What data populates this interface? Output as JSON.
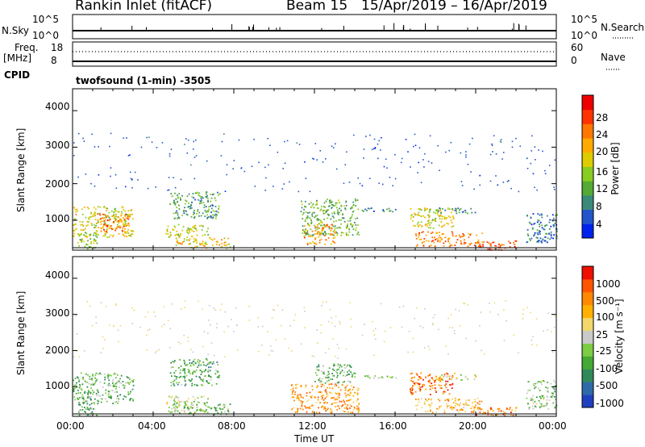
{
  "header": {
    "station": "Rankin Inlet (fitACF)",
    "beam": "Beam 15",
    "date_range": "15/Apr/2019 – 16/Apr/2019"
  },
  "top_panels": {
    "nsky_label": "N.Sky",
    "nsky_ticks": [
      "10^5",
      "10^0"
    ],
    "nsearch_label": "N.Search",
    "nsearch_ticks": [
      "10^5",
      "10^0"
    ],
    "freq_label": "Freq.",
    "freq_unit": "[MHz]",
    "freq_ticks": [
      "18",
      "8"
    ],
    "nave_label": "Nave",
    "nave_ticks": [
      "60",
      "0"
    ],
    "cpid_label": "CPID",
    "cpid_value": "twofsound (1-min) -3505"
  },
  "chart_data": [
    {
      "type": "heatmap",
      "name": "power",
      "ylabel": "Slant Range [km]",
      "colorbar_label": "Power [dB]",
      "x_range_hours": [
        0,
        24
      ],
      "ylim": [
        180,
        4600
      ],
      "y_ticks": [
        1000,
        2000,
        3000,
        4000
      ],
      "colorbar_ticks": [
        "4",
        "8",
        "12",
        "16",
        "20",
        "24",
        "28"
      ],
      "colorbar_colors": [
        "#0022ee",
        "#2255cc",
        "#3a8a7a",
        "#55aa33",
        "#88cc22",
        "#ddcc00",
        "#ffaa00",
        "#ff7700",
        "#ff3300",
        "#ee0000"
      ],
      "regions": [
        {
          "t0": 0.0,
          "t1": 3.0,
          "r0": 550,
          "r1": 1400,
          "level": 0.55
        },
        {
          "t0": 1.2,
          "t1": 2.8,
          "r0": 700,
          "r1": 1200,
          "level": 0.78
        },
        {
          "t0": 0.2,
          "t1": 1.2,
          "r0": 200,
          "r1": 700,
          "level": 0.4
        },
        {
          "t0": 4.8,
          "t1": 7.3,
          "r0": 1050,
          "r1": 1800,
          "level": 0.3
        },
        {
          "t0": 4.6,
          "t1": 6.7,
          "r0": 550,
          "r1": 900,
          "level": 0.5
        },
        {
          "t0": 5.0,
          "t1": 7.8,
          "r0": 250,
          "r1": 550,
          "level": 0.6
        },
        {
          "t0": 11.3,
          "t1": 14.2,
          "r0": 600,
          "r1": 1600,
          "level": 0.35
        },
        {
          "t0": 11.4,
          "t1": 13.0,
          "r0": 350,
          "r1": 900,
          "level": 0.7
        },
        {
          "t0": 14.2,
          "t1": 16.2,
          "r0": 1250,
          "r1": 1350,
          "level": 0.2
        },
        {
          "t0": 16.7,
          "t1": 19.0,
          "r0": 800,
          "r1": 1350,
          "level": 0.55
        },
        {
          "t0": 17.0,
          "t1": 20.3,
          "r0": 300,
          "r1": 700,
          "level": 0.75
        },
        {
          "t0": 18.0,
          "t1": 20.0,
          "r0": 1200,
          "r1": 1350,
          "level": 0.2
        },
        {
          "t0": 20.0,
          "t1": 22.0,
          "r0": 200,
          "r1": 450,
          "level": 0.85
        },
        {
          "t0": 22.5,
          "t1": 24.0,
          "r0": 400,
          "r1": 1200,
          "level": 0.15
        }
      ]
    },
    {
      "type": "heatmap",
      "name": "velocity",
      "ylabel": "Slant Range [km]",
      "xlabel": "Time UT",
      "colorbar_label": "Velocity [m s⁻¹]",
      "x_range_hours": [
        0,
        24
      ],
      "ylim": [
        180,
        4600
      ],
      "y_ticks": [
        1000,
        2000,
        3000,
        4000
      ],
      "x_ticks": [
        "00:00",
        "04:00",
        "08:00",
        "12:00",
        "16:00",
        "20:00",
        "00:00"
      ],
      "colorbar_ticks": [
        "1000",
        "500",
        "100",
        "25",
        "-25",
        "-100",
        "-500",
        "-1000"
      ],
      "colorbar_colors": [
        "#1f3fbf",
        "#2f6aa8",
        "#2f8a5a",
        "#44aa33",
        "#7ccc44",
        "#c9c9c9",
        "#f2d76b",
        "#ffb000",
        "#ff8800",
        "#ff5500",
        "#ee1100"
      ],
      "regions": [
        {
          "t0": 0.0,
          "t1": 3.0,
          "r0": 550,
          "r1": 1400,
          "level": 0.35
        },
        {
          "t0": 0.2,
          "t1": 1.2,
          "r0": 200,
          "r1": 700,
          "level": 0.3
        },
        {
          "t0": 4.8,
          "t1": 7.3,
          "r0": 1050,
          "r1": 1800,
          "level": 0.3
        },
        {
          "t0": 4.6,
          "t1": 6.7,
          "r0": 300,
          "r1": 750,
          "level": 0.5
        },
        {
          "t0": 5.0,
          "t1": 7.8,
          "r0": 250,
          "r1": 550,
          "level": 0.4
        },
        {
          "t0": 10.8,
          "t1": 14.2,
          "r0": 300,
          "r1": 1100,
          "level": 0.75
        },
        {
          "t0": 12.0,
          "t1": 14.0,
          "r0": 1100,
          "r1": 1650,
          "level": 0.35
        },
        {
          "t0": 14.2,
          "t1": 16.2,
          "r0": 1250,
          "r1": 1350,
          "level": 0.5
        },
        {
          "t0": 16.7,
          "t1": 19.0,
          "r0": 800,
          "r1": 1400,
          "level": 0.85
        },
        {
          "t0": 17.0,
          "t1": 20.3,
          "r0": 300,
          "r1": 700,
          "level": 0.7
        },
        {
          "t0": 18.0,
          "t1": 20.0,
          "r0": 1200,
          "r1": 1350,
          "level": 0.5
        },
        {
          "t0": 20.0,
          "t1": 22.0,
          "r0": 200,
          "r1": 450,
          "level": 0.8
        },
        {
          "t0": 22.5,
          "t1": 24.0,
          "r0": 400,
          "r1": 1200,
          "level": 0.4
        }
      ]
    }
  ]
}
